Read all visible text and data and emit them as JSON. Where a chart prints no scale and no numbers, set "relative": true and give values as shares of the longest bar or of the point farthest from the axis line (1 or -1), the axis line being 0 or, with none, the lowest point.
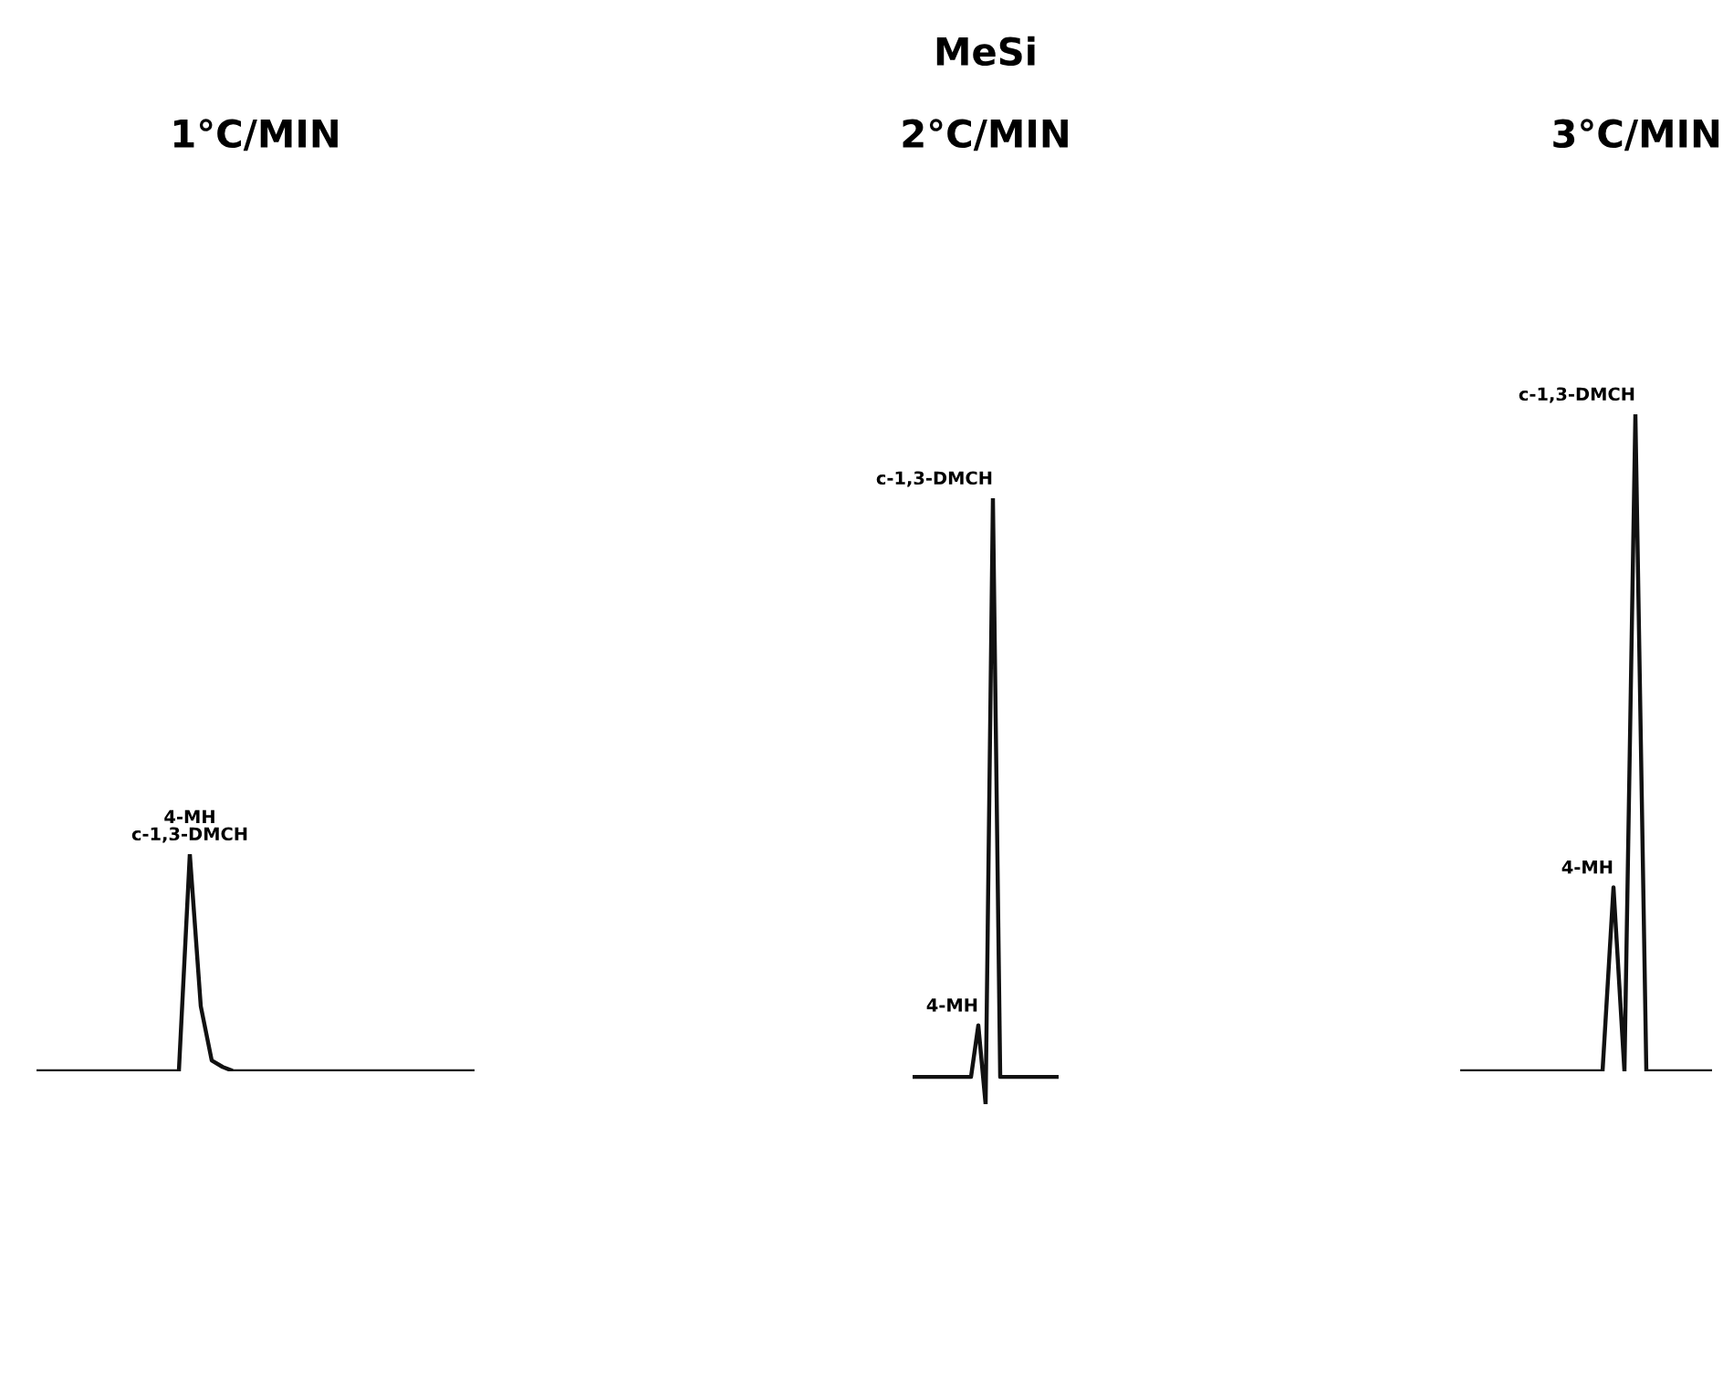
{
  "chart_data": [
    {
      "type": "line",
      "title": "1°C/MIN",
      "relative": true,
      "categories": [
        null,
        null,
        null,
        null,
        null,
        null,
        null,
        null,
        null,
        null,
        null,
        null,
        null,
        null,
        null,
        null,
        null,
        null,
        null,
        null,
        null,
        null,
        null,
        null,
        null,
        null,
        null,
        null,
        null,
        null,
        null,
        null,
        null,
        null,
        null,
        null,
        null,
        null,
        null,
        null,
        null
      ],
      "series": [
        {
          "color": "#111111",
          "values": [
            0,
            0,
            0,
            0,
            0,
            0,
            0,
            0,
            0,
            0,
            0,
            0,
            0,
            0,
            1,
            0.3,
            0.05,
            0.02,
            0,
            0,
            0,
            0,
            0,
            0,
            0,
            0,
            0,
            0,
            0,
            0,
            0,
            0,
            0,
            0,
            0,
            0,
            0,
            0,
            0,
            0,
            0
          ]
        }
      ],
      "annotations": [
        "4-MH\nc-1,3-DMCH"
      ]
    },
    {
      "type": "line",
      "title": "MeSi",
      "subtitle": "2°C/MIN",
      "relative": true,
      "categories": [
        null,
        null,
        null,
        null,
        null,
        null,
        null,
        null,
        null,
        null,
        null,
        null,
        null,
        null,
        null,
        null,
        null,
        null,
        null,
        null,
        null
      ],
      "series": [
        {
          "color": "#111111",
          "values": [
            0.045,
            0.045,
            0.045,
            0.045,
            0.045,
            0.045,
            0.045,
            0.045,
            0.045,
            0.13,
            0,
            1,
            0.045,
            0.045,
            0.045,
            0.045,
            0.045,
            0.045,
            0.045,
            0.045,
            0.045
          ]
        }
      ],
      "annotations": [
        "4-MH",
        "c-1,3-DMCH"
      ]
    },
    {
      "type": "line",
      "title": "3°C/MIN",
      "relative": true,
      "categories": [
        null,
        null,
        null,
        null,
        null,
        null,
        null,
        null,
        null,
        null,
        null,
        null,
        null,
        null,
        null,
        null,
        null,
        null,
        null,
        null,
        null,
        null,
        null,
        null
      ],
      "series": [
        {
          "color": "#111111",
          "values": [
            0,
            0,
            0,
            0,
            0,
            0,
            0,
            0,
            0,
            0,
            0,
            0,
            0,
            0,
            0.28,
            0,
            1,
            0,
            0,
            0,
            0,
            0,
            0,
            0
          ]
        }
      ],
      "annotations": [
        "4-MH",
        "c-1,3-DMCH"
      ]
    }
  ]
}
